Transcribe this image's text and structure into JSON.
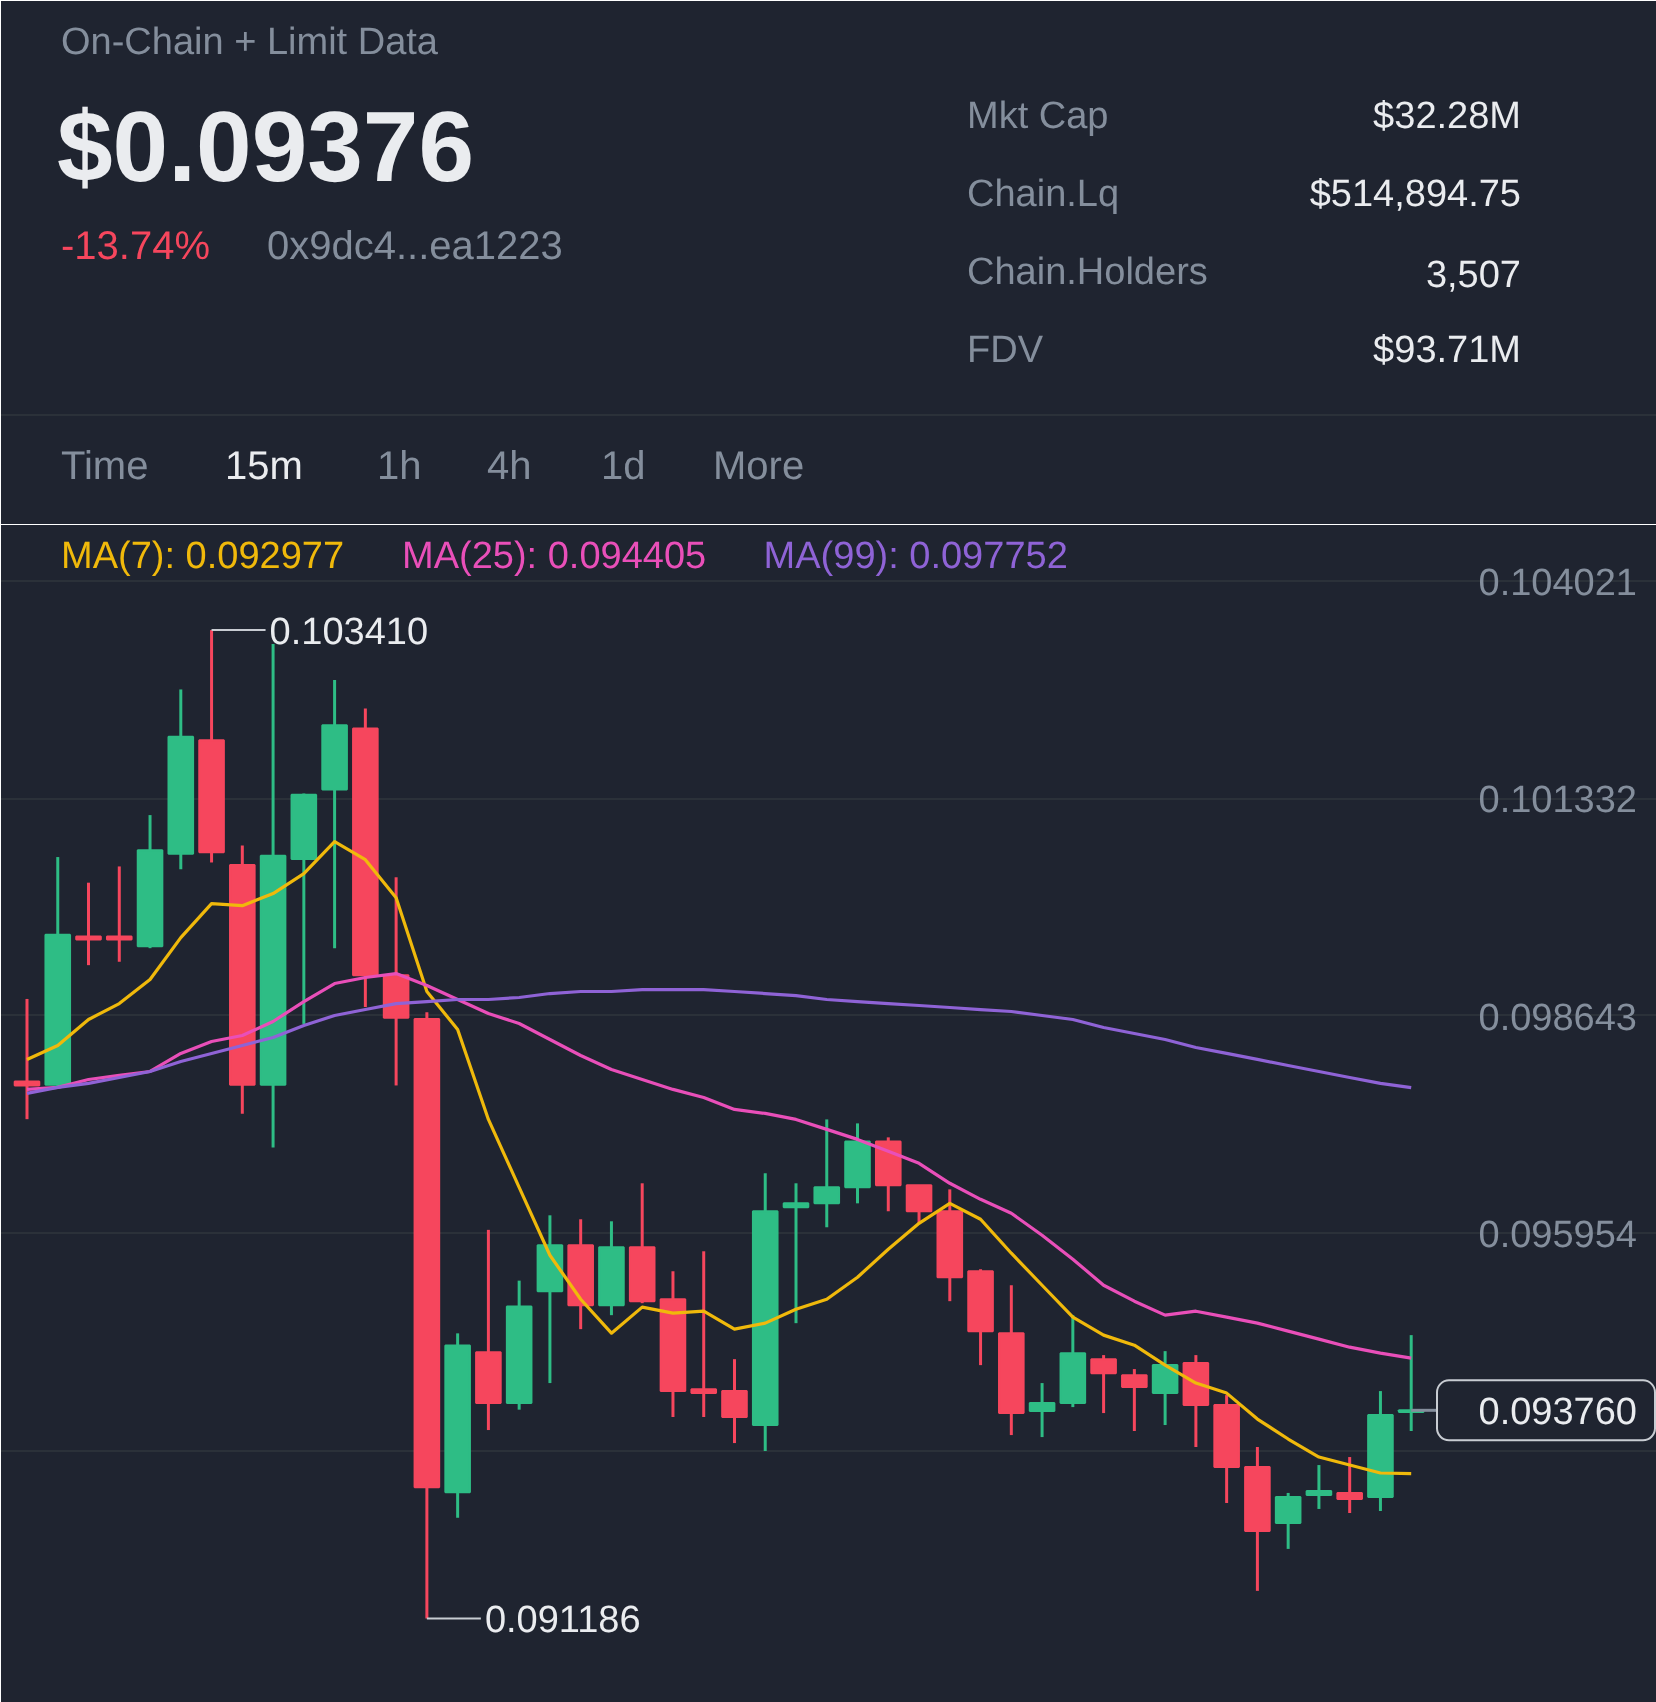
{
  "chart_data": {
    "type": "candlestick",
    "title": "On-Chain + Limit Data",
    "subtitle": "$0.09376",
    "annotations": [
      "-13.74%",
      "0x9dc4...ea1223",
      "Mkt Cap",
      "$32.28M",
      "Chain.Lq",
      "$514,894.75",
      "Chain.Holders",
      "3,507",
      "FDV",
      "$93.71M",
      "Time",
      "15m",
      "1h",
      "4h",
      "1d",
      "More",
      "0.103410",
      "0.091186"
    ],
    "categories": [
      null,
      null,
      null,
      null,
      null,
      null,
      null,
      null,
      null,
      null,
      null,
      null,
      null,
      null,
      null,
      null,
      null,
      null,
      null,
      null,
      null,
      null,
      null,
      null,
      null,
      null,
      null,
      null,
      null,
      null,
      null,
      null,
      null,
      null,
      null,
      null,
      null,
      null,
      null,
      null,
      null,
      null,
      null,
      null,
      null,
      null
    ],
    "ohlc": [
      [
        0.097828,
        0.098848,
        0.097361,
        0.097778
      ],
      [
        0.097788,
        0.100603,
        0.097764,
        0.099642
      ],
      [
        0.099619,
        0.100286,
        0.099266,
        0.099582
      ],
      [
        0.099619,
        0.100487,
        0.099308,
        0.099582
      ],
      [
        0.099501,
        0.101122,
        0.099476,
        0.100687
      ],
      [
        0.100645,
        0.102676,
        0.100452,
        0.10209
      ],
      [
        0.102048,
        0.10341,
        0.100536,
        0.100662
      ],
      [
        0.100504,
        0.100746,
        0.097427,
        0.097788
      ],
      [
        0.097788,
        0.103237,
        0.09701,
        0.10062
      ],
      [
        0.100578,
        0.101389,
        0.098539,
        0.101374
      ],
      [
        0.10144,
        0.102794,
        0.099476,
        0.102234
      ],
      [
        0.102192,
        0.102441,
        0.098749,
        0.099142
      ],
      [
        0.099142,
        0.100353,
        0.097778,
        0.098614
      ],
      [
        0.098599,
        0.098683,
        0.091186,
        0.092807
      ],
      [
        0.092747,
        0.094712,
        0.092431,
        0.094561
      ],
      [
        0.094477,
        0.095992,
        0.093516,
        0.093852
      ],
      [
        0.093852,
        0.095364,
        0.093768,
        0.095045
      ],
      [
        0.095233,
        0.096172,
        0.094097,
        0.095802
      ],
      [
        0.095802,
        0.096123,
        0.094764,
        0.09506
      ],
      [
        0.09506,
        0.096098,
        0.094937,
        0.095777
      ],
      [
        0.095777,
        0.096568,
        0.095085,
        0.09511
      ],
      [
        0.095134,
        0.09548,
        0.093677,
        0.093998
      ],
      [
        0.094022,
        0.095727,
        0.093677,
        0.093973
      ],
      [
        0.093998,
        0.094393,
        0.093355,
        0.093677
      ],
      [
        0.093578,
        0.096691,
        0.093256,
        0.096222
      ],
      [
        0.096271,
        0.096568,
        0.094838,
        0.09632
      ],
      [
        0.09632,
        0.097358,
        0.096024,
        0.096518
      ],
      [
        0.096518,
        0.097309,
        0.09632,
        0.097086
      ],
      [
        0.097086,
        0.097136,
        0.096222,
        0.096543
      ],
      [
        0.096543,
        0.096543,
        0.096073,
        0.096222
      ],
      [
        0.096222,
        0.096493,
        0.09511,
        0.095406
      ],
      [
        0.09548,
        0.095505,
        0.094319,
        0.094739
      ],
      [
        0.094714,
        0.095307,
        0.093454,
        0.093726
      ],
      [
        0.093751,
        0.094097,
        0.093429,
        0.093849
      ],
      [
        0.093849,
        0.094937,
        0.0938,
        0.094467
      ],
      [
        0.094393,
        0.094443,
        0.093726,
        0.09422
      ],
      [
        0.094195,
        0.09427,
        0.093504,
        0.094047
      ],
      [
        0.093973,
        0.094492,
        0.093578,
        0.094319
      ],
      [
        0.094344,
        0.094443,
        0.093306,
        0.093825
      ],
      [
        0.093825,
        0.093948,
        0.092614,
        0.093059
      ],
      [
        0.093059,
        0.093306,
        0.091527,
        0.092268
      ],
      [
        0.092367,
        0.092738,
        0.092046,
        0.092688
      ],
      [
        0.092713,
        0.093083,
        0.09254,
        0.092762
      ],
      [
        0.092738,
        0.093182,
        0.09249,
        0.092663
      ],
      [
        0.092688,
        0.093998,
        0.092515,
        0.093701
      ],
      [
        0.09374,
        0.09469,
        0.093504,
        0.09376
      ]
    ],
    "colors": [
      "#f6465d",
      "#2ebd85",
      "#f6465d",
      "#f6465d",
      "#2ebd85",
      "#2ebd85",
      "#f6465d",
      "#f6465d",
      "#2ebd85",
      "#2ebd85",
      "#2ebd85",
      "#f6465d",
      "#f6465d",
      "#f6465d",
      "#2ebd85",
      "#f6465d",
      "#2ebd85",
      "#2ebd85",
      "#f6465d",
      "#2ebd85",
      "#f6465d",
      "#f6465d",
      "#f6465d",
      "#f6465d",
      "#2ebd85",
      "#2ebd85",
      "#2ebd85",
      "#2ebd85",
      "#f6465d",
      "#f6465d",
      "#f6465d",
      "#f6465d",
      "#f6465d",
      "#2ebd85",
      "#2ebd85",
      "#f6465d",
      "#f6465d",
      "#2ebd85",
      "#f6465d",
      "#f6465d",
      "#f6465d",
      "#2ebd85",
      "#2ebd85",
      "#f6465d",
      "#2ebd85",
      "#2ebd85"
    ],
    "series": [
      {
        "name": "MA(7): 0.092977",
        "type": "line",
        "color": "#f0b90b",
        "values": [
          0.0981,
          0.098273,
          0.098594,
          0.098791,
          0.099088,
          0.099607,
          0.100027,
          0.100002,
          0.100151,
          0.100398,
          0.100793,
          0.100571,
          0.100101,
          0.09894,
          0.09847,
          0.097358,
          0.096518,
          0.095678,
          0.095134,
          0.094714,
          0.095036,
          0.094962,
          0.094986,
          0.094764,
          0.094838,
          0.095011,
          0.095134,
          0.095406,
          0.095752,
          0.096073,
          0.09632,
          0.096123,
          0.095703,
          0.095307,
          0.094912,
          0.09469,
          0.094566,
          0.094319,
          0.094097,
          0.093973,
          0.093652,
          0.093405,
          0.093182,
          0.093084,
          0.092985,
          0.092977
        ]
      },
      {
        "name": "MA(25): 0.094405",
        "type": "line",
        "color": "#e94fb9",
        "values": [
          0.097729,
          0.097754,
          0.097852,
          0.097902,
          0.097951,
          0.098174,
          0.098322,
          0.098396,
          0.098569,
          0.098816,
          0.099039,
          0.099113,
          0.099162,
          0.099014,
          0.098841,
          0.098668,
          0.098544,
          0.098347,
          0.098149,
          0.097976,
          0.097852,
          0.097729,
          0.09763,
          0.097482,
          0.097432,
          0.097358,
          0.097235,
          0.097111,
          0.096963,
          0.096815,
          0.096568,
          0.09637,
          0.096197,
          0.095925,
          0.095629,
          0.095307,
          0.09511,
          0.094937,
          0.094986,
          0.094912,
          0.094838,
          0.094739,
          0.09464,
          0.094541,
          0.094467,
          0.094405
        ]
      },
      {
        "name": "MA(99): 0.097752",
        "type": "line",
        "color": "#8f63d6",
        "values": [
          0.09768,
          0.097754,
          0.097803,
          0.097877,
          0.097951,
          0.098075,
          0.098174,
          0.098273,
          0.098371,
          0.09852,
          0.098643,
          0.098717,
          0.098791,
          0.098816,
          0.098841,
          0.098841,
          0.098866,
          0.098915,
          0.09894,
          0.09894,
          0.098964,
          0.098964,
          0.098964,
          0.09894,
          0.098915,
          0.09889,
          0.098841,
          0.098816,
          0.098791,
          0.098767,
          0.098742,
          0.098717,
          0.098693,
          0.098643,
          0.098594,
          0.098495,
          0.098421,
          0.098347,
          0.098248,
          0.098174,
          0.0981,
          0.098025,
          0.097951,
          0.097877,
          0.097803,
          0.097752
        ]
      }
    ],
    "ylim": [
      0.09014,
      0.10471
    ],
    "yticks": [
      0.104021,
      0.101332,
      0.098643,
      0.095954,
      {
        "value": 0.093265,
        "label": null
      }
    ],
    "ref_lines": [
      {
        "axis": "y",
        "value": 0.09376,
        "label": "0.093760"
      }
    ],
    "grid": "y",
    "legend": "top",
    "marker": "none",
    "line_style": "solid"
  }
}
